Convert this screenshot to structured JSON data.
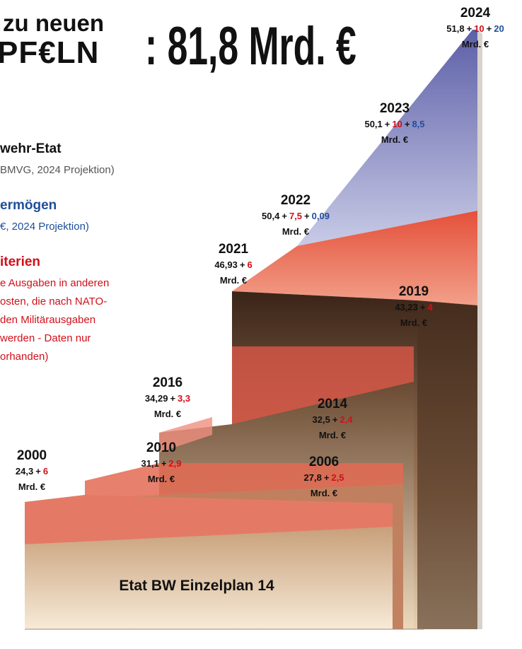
{
  "header": {
    "line1": "zu neuen",
    "line2": "PF€LN",
    "total": ": 81,8 Mrd. €"
  },
  "legend": [
    {
      "title": "wehr-Etat",
      "lines": [
        "BMVG, 2024 Projektion)"
      ]
    },
    {
      "title": "ermögen",
      "lines": [
        "€, 2024 Projektion)"
      ]
    },
    {
      "title": "iterien",
      "lines": [
        "e Ausgaben in anderen",
        "osten, die nach NATO-",
        "den Militärausgaben",
        "werden - Daten nur",
        "orhanden)"
      ]
    }
  ],
  "plus": "+",
  "unit": "Mrd. €",
  "years": [
    {
      "year": "2024",
      "base": "51,8",
      "nato": "10",
      "special": "20"
    },
    {
      "year": "2023",
      "base": "50,1",
      "nato": "10",
      "special": "8,5"
    },
    {
      "year": "2022",
      "base": "50,4",
      "nato": "7,5",
      "special": "0,09"
    },
    {
      "year": "2021",
      "base": "46,93",
      "nato": "6"
    },
    {
      "year": "2019",
      "base": "43,23",
      "nato": "4"
    },
    {
      "year": "2016",
      "base": "34,29",
      "nato": "3,3"
    },
    {
      "year": "2014",
      "base": "32,5",
      "nato": "2,4"
    },
    {
      "year": "2010",
      "base": "31,1",
      "nato": "2,9"
    },
    {
      "year": "2006",
      "base": "27,8",
      "nato": "2,5"
    },
    {
      "year": "2000",
      "base": "24,3",
      "nato": "6"
    }
  ],
  "footer": "Etat BW Einzelplan 14"
}
